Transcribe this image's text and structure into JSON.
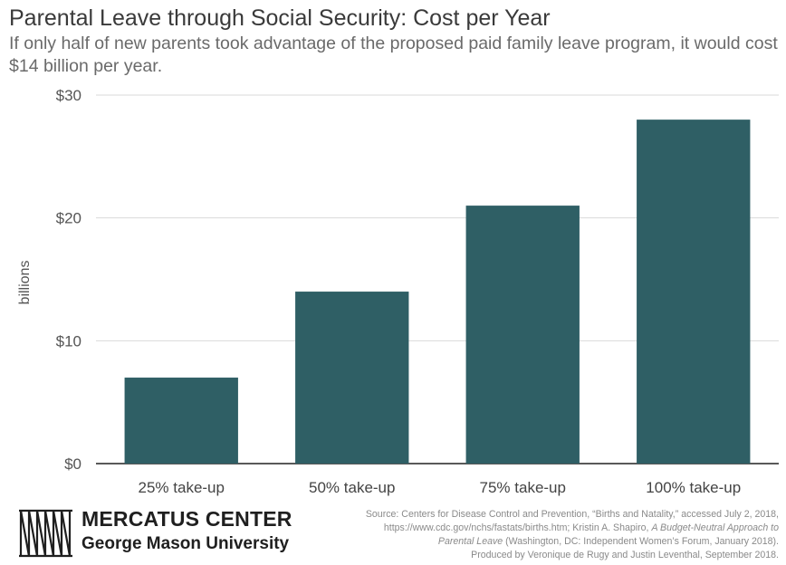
{
  "header": {
    "title": "Parental Leave through Social Security: Cost per Year",
    "subtitle": "If only half of new parents took advantage of the proposed paid family leave program, it would cost $14 billion per year."
  },
  "chart_data": {
    "type": "bar",
    "categories": [
      "25% take-up",
      "50% take-up",
      "75% take-up",
      "100% take-up"
    ],
    "values": [
      7,
      14,
      21,
      28
    ],
    "ylabel": "billions",
    "ylim": [
      0,
      30
    ],
    "yticks": [
      0,
      10,
      20,
      30
    ],
    "ytick_labels": [
      "$0",
      "$10",
      "$20",
      "$30"
    ],
    "grid": true,
    "bar_color": "#2f5f65",
    "grid_color": "#d9d9d9"
  },
  "footer": {
    "logo_name": "MERCATUS CENTER",
    "logo_sub": "George Mason University",
    "source_line1": "Source: Centers for Disease Control and Prevention, “Births and Natality,” accessed July 2, 2018,",
    "source_line2a": "https://www.cdc.gov/nchs/fastats/births.htm; Kristin A. Shapiro, ",
    "source_line2b": "A Budget-Neutral Approach to",
    "source_line3a": "Parental Leave",
    "source_line3b": " (Washington, DC: Independent Women’s Forum, January 2018).",
    "source_line4": "Produced by Veronique de Rugy and Justin Leventhal, September 2018."
  }
}
